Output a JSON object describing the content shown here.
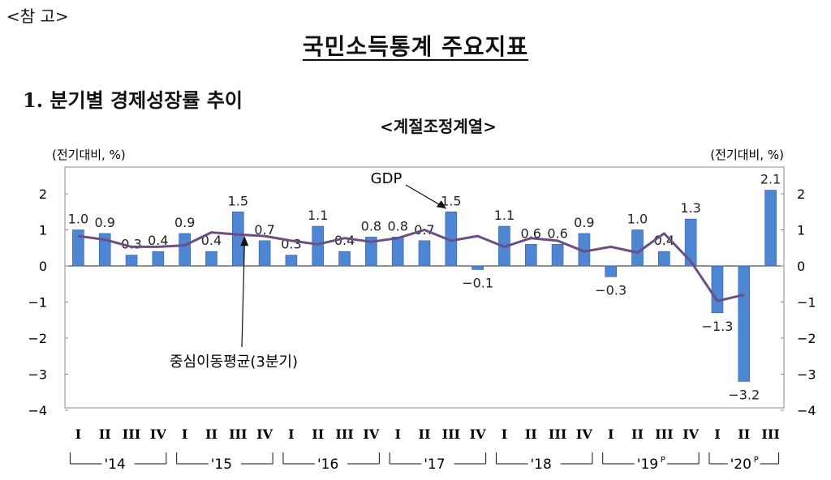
{
  "reference_label": "<참 고>",
  "page_title": "국민소득통계 주요지표",
  "section_title": "1. 분기별 경제성장률 추이",
  "chart_data": {
    "type": "bar",
    "title": "<계절조정계열>",
    "ylabel_left": "(전기대비, %)",
    "ylabel_right": "(전기대비, %)",
    "ylim_left": [
      -4,
      2.5
    ],
    "ylim_right": [
      -4,
      2.5
    ],
    "yticks_left": [
      2,
      1,
      0,
      -1,
      -2,
      -3,
      -4
    ],
    "yticks_right": [
      2,
      1,
      0,
      -1,
      -2,
      -3,
      -4
    ],
    "categories": [
      "I",
      "II",
      "III",
      "IV",
      "I",
      "II",
      "III",
      "IV",
      "I",
      "II",
      "III",
      "IV",
      "I",
      "II",
      "III",
      "IV",
      "I",
      "II",
      "III",
      "IV",
      "I",
      "II",
      "III",
      "IV",
      "I",
      "II",
      "III"
    ],
    "year_groups": [
      {
        "label": "'14",
        "sup": "",
        "start": 0,
        "end": 3
      },
      {
        "label": "'15",
        "sup": "",
        "start": 4,
        "end": 7
      },
      {
        "label": "'16",
        "sup": "",
        "start": 8,
        "end": 11
      },
      {
        "label": "'17",
        "sup": "",
        "start": 12,
        "end": 15
      },
      {
        "label": "'18",
        "sup": "",
        "start": 16,
        "end": 19
      },
      {
        "label": "'19",
        "sup": "P",
        "start": 20,
        "end": 23
      },
      {
        "label": "'20",
        "sup": "P",
        "start": 24,
        "end": 26
      }
    ],
    "series": [
      {
        "name": "GDP",
        "kind": "bar",
        "color": "#4f86d4",
        "values": [
          1.0,
          0.9,
          0.3,
          0.4,
          0.9,
          0.4,
          1.5,
          0.7,
          0.3,
          1.1,
          0.4,
          0.8,
          0.8,
          0.7,
          1.5,
          -0.1,
          1.1,
          0.6,
          0.6,
          0.9,
          -0.3,
          1.0,
          0.4,
          1.3,
          -1.3,
          -3.2,
          2.1
        ],
        "labels": [
          "1.0",
          "0.9",
          "0.3",
          "0.4",
          "0.9",
          "0.4",
          "1.5",
          "0.7",
          "0.3",
          "1.1",
          "0.4",
          "0.8",
          "0.8",
          "0.7",
          "1.5",
          "−0.1",
          "1.1",
          "0.6",
          "0.6",
          "0.9",
          "−0.3",
          "1.0",
          "0.4",
          "1.3",
          "−1.3",
          "−3.2",
          "2.1"
        ]
      },
      {
        "name": "중심이동평균(3분기)",
        "kind": "line",
        "color": "#6b4e84",
        "values": [
          0.83,
          0.73,
          0.53,
          0.53,
          0.57,
          0.93,
          0.87,
          0.83,
          0.7,
          0.6,
          0.77,
          0.67,
          0.77,
          1.0,
          0.7,
          0.83,
          0.53,
          0.77,
          0.7,
          0.4,
          0.53,
          0.37,
          0.9,
          0.13,
          -0.97,
          -0.8,
          null
        ]
      }
    ],
    "annotations": [
      {
        "text": "GDP",
        "target": "series.0",
        "at_index": 14
      },
      {
        "text": "중심이동평균(3분기)",
        "target": "series.1",
        "at_index": 6
      }
    ]
  }
}
